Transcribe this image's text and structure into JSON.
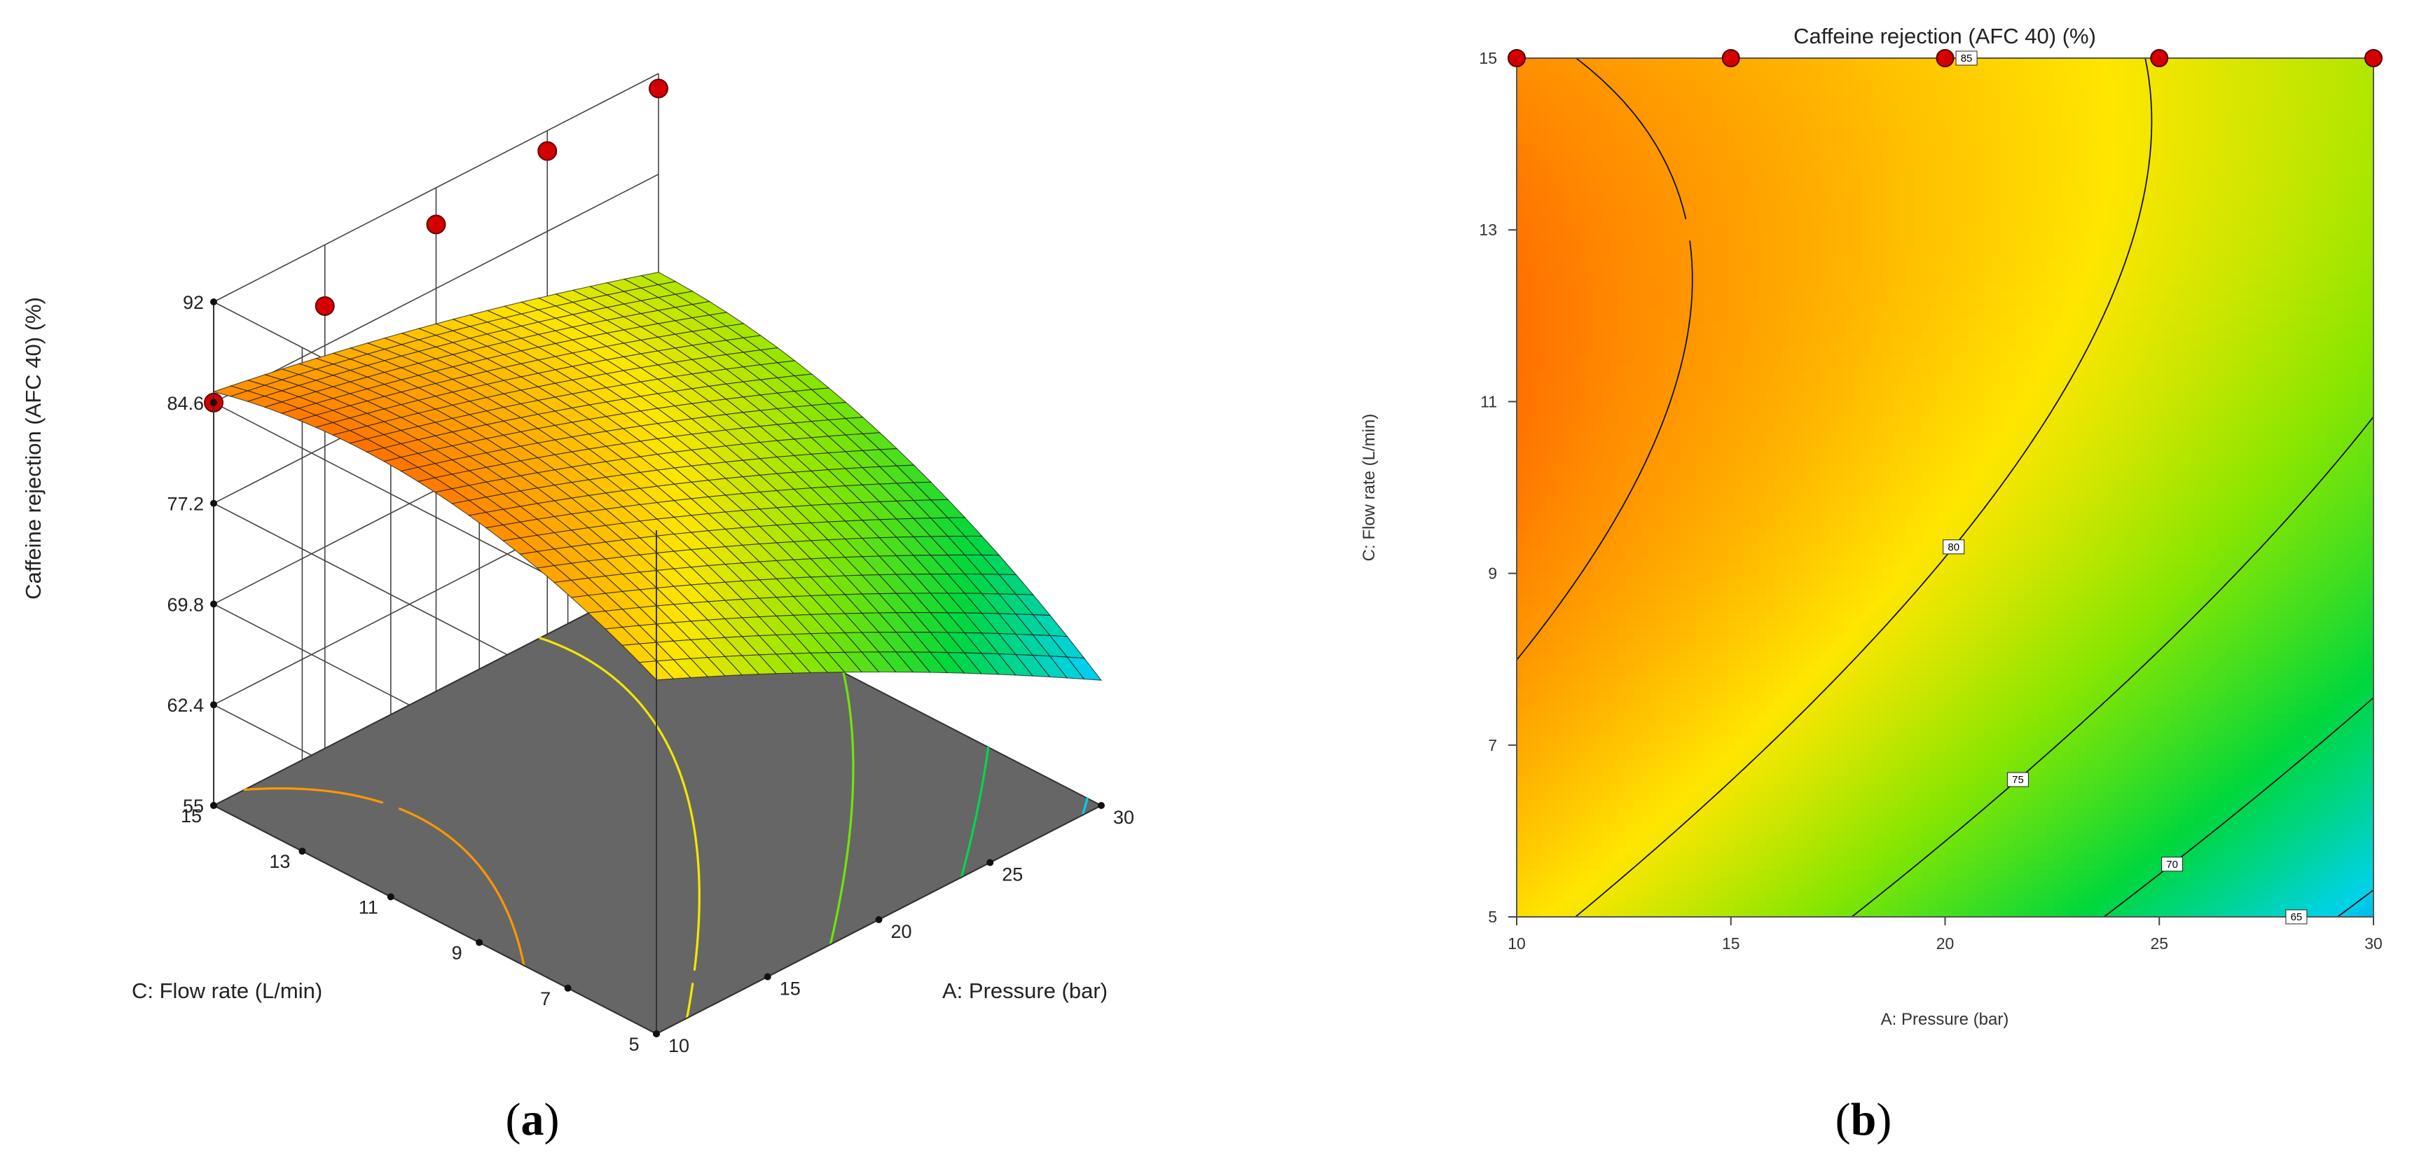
{
  "figure": {
    "panel_a": {
      "open": "(",
      "letter": "a",
      "close": ")"
    },
    "panel_b": {
      "open": "(",
      "letter": "b",
      "close": ")"
    }
  },
  "chart_data": [
    {
      "type": "surface",
      "panel": "a",
      "title": "",
      "zlabel": "Caffeine rejection (AFC 40) (%)",
      "xlabel": "A: Pressure (bar)",
      "ylabel": "C: Flow rate (L/min)",
      "x_ticks": [
        10,
        15,
        20,
        25,
        30
      ],
      "y_ticks": [
        5,
        7,
        9,
        11,
        13,
        15
      ],
      "z_ticks": [
        55,
        62.4,
        69.8,
        77.2,
        84.6,
        92
      ],
      "xlim": [
        10,
        30
      ],
      "ylim": [
        5,
        15
      ],
      "zlim": [
        55,
        92
      ],
      "design_points": [
        {
          "x": 10,
          "y": 15,
          "z": 84.6
        },
        {
          "x": 15,
          "y": 15,
          "z": 87.5
        },
        {
          "x": 20,
          "y": 15,
          "z": 89.3
        },
        {
          "x": 25,
          "y": 15,
          "z": 90.5
        },
        {
          "x": 30,
          "y": 15,
          "z": 90.9
        }
      ],
      "floor_contours": [
        85,
        80,
        75,
        70,
        65
      ],
      "color_range": [
        60,
        92
      ]
    },
    {
      "type": "contour",
      "panel": "b",
      "title": "Caffeine rejection (AFC 40) (%)",
      "xlabel": "A: Pressure (bar)",
      "ylabel": "C: Flow rate (L/min)",
      "x_ticks": [
        10,
        15,
        20,
        25,
        30
      ],
      "y_ticks": [
        5,
        7,
        9,
        11,
        13,
        15
      ],
      "xlim": [
        10,
        30
      ],
      "ylim": [
        5,
        15
      ],
      "contour_levels": [
        {
          "value": 85,
          "label": "85"
        },
        {
          "value": 80,
          "label": "80"
        },
        {
          "value": 75,
          "label": "75"
        },
        {
          "value": 70,
          "label": "70"
        },
        {
          "value": 65,
          "label": "65"
        }
      ],
      "design_points": [
        {
          "x": 10,
          "y": 15
        },
        {
          "x": 15,
          "y": 15
        },
        {
          "x": 20,
          "y": 15
        },
        {
          "x": 25,
          "y": 15
        },
        {
          "x": 30,
          "y": 15
        }
      ],
      "color_range": [
        60,
        92
      ]
    }
  ]
}
